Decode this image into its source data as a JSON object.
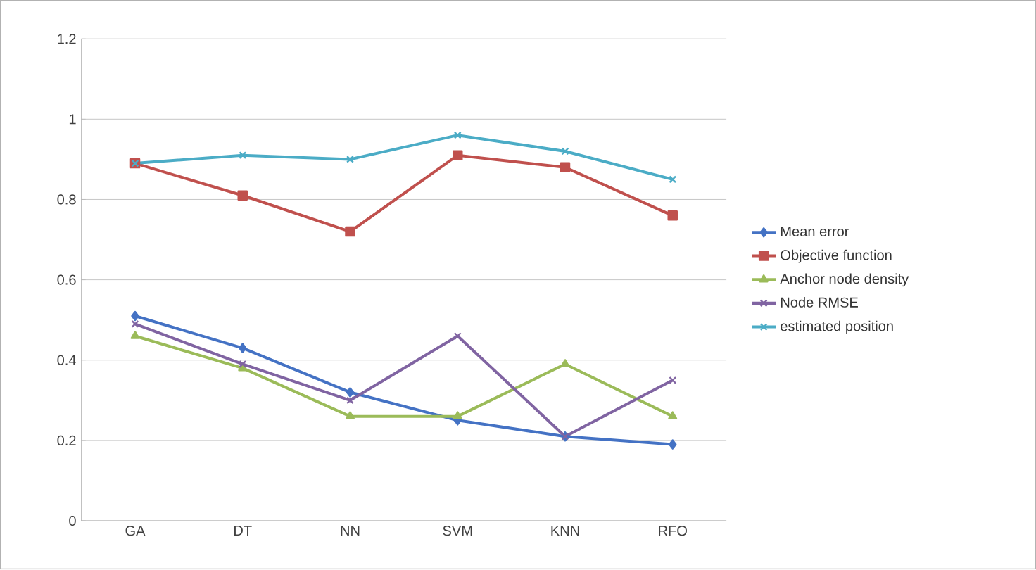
{
  "chart_data": {
    "type": "line",
    "categories": [
      "GA",
      "DT",
      "NN",
      "SVM",
      "KNN",
      "RFO"
    ],
    "series": [
      {
        "name": "Mean error",
        "color": "#4472c4",
        "marker": "diamond",
        "values": [
          0.51,
          0.43,
          0.32,
          0.25,
          0.21,
          0.19
        ]
      },
      {
        "name": "Objective function",
        "color": "#c0504d",
        "marker": "square",
        "values": [
          0.89,
          0.81,
          0.72,
          0.91,
          0.88,
          0.76
        ]
      },
      {
        "name": "Anchor node density",
        "color": "#9bbb59",
        "marker": "triangle",
        "values": [
          0.46,
          0.38,
          0.26,
          0.26,
          0.39,
          0.26
        ]
      },
      {
        "name": "Node RMSE",
        "color": "#8064a2",
        "marker": "cross",
        "values": [
          0.49,
          0.39,
          0.3,
          0.46,
          0.21,
          0.35
        ]
      },
      {
        "name": "estimated position",
        "color": "#4bacc6",
        "marker": "cross",
        "values": [
          0.89,
          0.91,
          0.9,
          0.96,
          0.92,
          0.85
        ]
      }
    ],
    "ylim": [
      0,
      1.2
    ],
    "yticks": [
      0,
      0.2,
      0.4,
      0.6,
      0.8,
      1,
      1.2
    ],
    "grid": "y",
    "legend": "right"
  }
}
